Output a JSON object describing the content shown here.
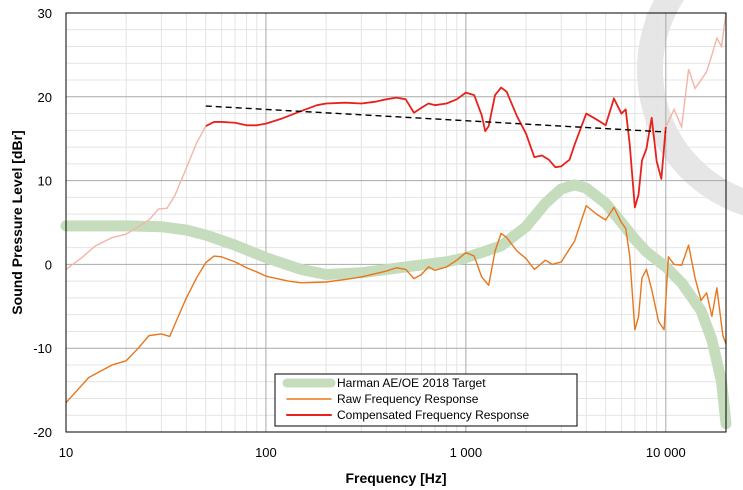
{
  "chart_data": {
    "type": "line",
    "title": "",
    "xlabel": "Frequency [Hz]",
    "ylabel": "Sound Pressure Level [dBr]",
    "xscale": "log",
    "xlim": [
      10,
      20000
    ],
    "ylim": [
      -20,
      30
    ],
    "x_ticks": [
      {
        "value": 10,
        "label": "10"
      },
      {
        "value": 100,
        "label": "100"
      },
      {
        "value": 1000,
        "label": "1 000"
      },
      {
        "value": 10000,
        "label": "10 000"
      }
    ],
    "y_ticks": [
      {
        "value": -20,
        "label": "-20"
      },
      {
        "value": -10,
        "label": "-10"
      },
      {
        "value": 0,
        "label": "0"
      },
      {
        "value": 10,
        "label": "10"
      },
      {
        "value": 20,
        "label": "20"
      },
      {
        "value": 30,
        "label": "30"
      }
    ],
    "grid": true,
    "legend_position": "bottom-center",
    "legend": [
      {
        "name": "Harman AE/OE 2018 Target",
        "series": "target"
      },
      {
        "name": "Raw Frequency Response",
        "series": "raw"
      },
      {
        "name": "Compensated Frequency Response",
        "series": "compensated"
      }
    ],
    "series": [
      {
        "id": "target",
        "name": "Harman AE/OE 2018 Target",
        "color": "#c5dcbd",
        "points": [
          [
            10,
            4.6
          ],
          [
            20,
            4.6
          ],
          [
            30,
            4.5
          ],
          [
            40,
            4.1
          ],
          [
            50,
            3.5
          ],
          [
            70,
            2.3
          ],
          [
            100,
            0.8
          ],
          [
            150,
            -0.6
          ],
          [
            200,
            -1.2
          ],
          [
            300,
            -1.0
          ],
          [
            500,
            -0.3
          ],
          [
            800,
            0.3
          ],
          [
            1000,
            0.8
          ],
          [
            1500,
            2.2
          ],
          [
            2000,
            4.5
          ],
          [
            2500,
            7.3
          ],
          [
            3000,
            9.0
          ],
          [
            3500,
            9.5
          ],
          [
            4000,
            9.1
          ],
          [
            5000,
            7.3
          ],
          [
            6000,
            5.0
          ],
          [
            7000,
            3.0
          ],
          [
            8000,
            1.5
          ],
          [
            10000,
            -0.3
          ],
          [
            12000,
            -2.2
          ],
          [
            15000,
            -5.5
          ],
          [
            17000,
            -9.0
          ],
          [
            19000,
            -14.0
          ],
          [
            20000,
            -19.0
          ]
        ]
      },
      {
        "id": "raw",
        "name": "Raw Frequency Response",
        "color": "#e8761b",
        "points": [
          [
            10,
            -16.5
          ],
          [
            13,
            -13.5
          ],
          [
            17,
            -12.0
          ],
          [
            20,
            -11.5
          ],
          [
            23,
            -10.0
          ],
          [
            26,
            -8.5
          ],
          [
            30,
            -8.3
          ],
          [
            33,
            -8.6
          ],
          [
            36,
            -6.5
          ],
          [
            40,
            -4.0
          ],
          [
            45,
            -1.6
          ],
          [
            50,
            0.2
          ],
          [
            55,
            1.0
          ],
          [
            60,
            0.9
          ],
          [
            70,
            0.3
          ],
          [
            80,
            -0.4
          ],
          [
            90,
            -0.9
          ],
          [
            100,
            -1.4
          ],
          [
            130,
            -2.0
          ],
          [
            150,
            -2.2
          ],
          [
            200,
            -2.1
          ],
          [
            250,
            -1.8
          ],
          [
            300,
            -1.5
          ],
          [
            400,
            -0.8
          ],
          [
            450,
            -0.4
          ],
          [
            500,
            -0.6
          ],
          [
            550,
            -1.7
          ],
          [
            600,
            -1.2
          ],
          [
            650,
            -0.3
          ],
          [
            700,
            -0.7
          ],
          [
            800,
            -0.3
          ],
          [
            900,
            0.5
          ],
          [
            1000,
            1.4
          ],
          [
            1100,
            1.0
          ],
          [
            1200,
            -1.5
          ],
          [
            1300,
            -2.5
          ],
          [
            1400,
            1.6
          ],
          [
            1500,
            3.7
          ],
          [
            1600,
            3.2
          ],
          [
            1800,
            1.6
          ],
          [
            2000,
            0.7
          ],
          [
            2200,
            -0.6
          ],
          [
            2500,
            0.5
          ],
          [
            2700,
            0.0
          ],
          [
            3000,
            0.3
          ],
          [
            3500,
            2.8
          ],
          [
            4000,
            7.0
          ],
          [
            4500,
            6.0
          ],
          [
            5000,
            5.3
          ],
          [
            5500,
            6.8
          ],
          [
            6000,
            5.0
          ],
          [
            6300,
            4.3
          ],
          [
            6600,
            1.0
          ],
          [
            7000,
            -7.8
          ],
          [
            7300,
            -6.3
          ],
          [
            7600,
            -1.6
          ],
          [
            8000,
            -0.6
          ],
          [
            8500,
            -3.0
          ],
          [
            9200,
            -6.8
          ],
          [
            9800,
            -7.8
          ],
          [
            10300,
            0.9
          ],
          [
            11000,
            0.0
          ],
          [
            12000,
            -0.1
          ],
          [
            13000,
            2.3
          ],
          [
            14000,
            -1.6
          ],
          [
            15000,
            -4.3
          ],
          [
            16000,
            -3.4
          ],
          [
            17000,
            -6.2
          ],
          [
            18000,
            -2.8
          ],
          [
            18600,
            -5.5
          ],
          [
            19300,
            -8.5
          ],
          [
            20000,
            -9.5
          ]
        ]
      },
      {
        "id": "compensated",
        "name": "Compensated Frequency Response",
        "color": "#e8211d",
        "range": [
          50,
          10000
        ],
        "faded_color": "#f4b5a8",
        "points": [
          [
            10,
            -0.6
          ],
          [
            12,
            0.8
          ],
          [
            14,
            2.2
          ],
          [
            17,
            3.2
          ],
          [
            20,
            3.6
          ],
          [
            23,
            4.5
          ],
          [
            26,
            5.3
          ],
          [
            29,
            6.6
          ],
          [
            32,
            6.7
          ],
          [
            35,
            8.2
          ],
          [
            40,
            11.5
          ],
          [
            45,
            14.5
          ],
          [
            50,
            16.5
          ],
          [
            55,
            17.0
          ],
          [
            60,
            17.0
          ],
          [
            70,
            16.9
          ],
          [
            80,
            16.6
          ],
          [
            90,
            16.6
          ],
          [
            100,
            16.8
          ],
          [
            120,
            17.4
          ],
          [
            150,
            18.3
          ],
          [
            180,
            19.0
          ],
          [
            200,
            19.2
          ],
          [
            250,
            19.3
          ],
          [
            300,
            19.2
          ],
          [
            350,
            19.4
          ],
          [
            400,
            19.7
          ],
          [
            450,
            19.9
          ],
          [
            500,
            19.7
          ],
          [
            550,
            18.1
          ],
          [
            600,
            18.7
          ],
          [
            650,
            19.2
          ],
          [
            700,
            19.0
          ],
          [
            800,
            19.2
          ],
          [
            900,
            19.7
          ],
          [
            1000,
            20.5
          ],
          [
            1100,
            20.2
          ],
          [
            1200,
            17.8
          ],
          [
            1250,
            15.9
          ],
          [
            1300,
            16.5
          ],
          [
            1400,
            20.2
          ],
          [
            1500,
            21.1
          ],
          [
            1600,
            20.6
          ],
          [
            1800,
            17.7
          ],
          [
            2000,
            15.6
          ],
          [
            2200,
            12.8
          ],
          [
            2400,
            13.0
          ],
          [
            2600,
            12.5
          ],
          [
            2800,
            11.6
          ],
          [
            3000,
            11.7
          ],
          [
            3300,
            12.5
          ],
          [
            3500,
            14.3
          ],
          [
            4000,
            18.0
          ],
          [
            4500,
            17.3
          ],
          [
            5000,
            16.6
          ],
          [
            5500,
            19.8
          ],
          [
            6000,
            18.0
          ],
          [
            6300,
            18.5
          ],
          [
            6600,
            14.3
          ],
          [
            7000,
            6.8
          ],
          [
            7300,
            8.3
          ],
          [
            7600,
            12.4
          ],
          [
            8000,
            13.8
          ],
          [
            8500,
            17.5
          ],
          [
            9000,
            12.3
          ],
          [
            9500,
            10.2
          ],
          [
            10000,
            16.4
          ],
          [
            11000,
            18.5
          ],
          [
            12000,
            16.4
          ],
          [
            13000,
            23.3
          ],
          [
            14000,
            21.0
          ],
          [
            15000,
            22.0
          ],
          [
            16000,
            23.0
          ],
          [
            17000,
            25.0
          ],
          [
            18000,
            27.0
          ],
          [
            19000,
            26.0
          ],
          [
            20000,
            30.0
          ]
        ]
      },
      {
        "id": "trend",
        "name": "",
        "color": "#000000",
        "dashed": true,
        "points": [
          [
            50,
            18.9
          ],
          [
            10000,
            15.8
          ]
        ]
      }
    ]
  }
}
